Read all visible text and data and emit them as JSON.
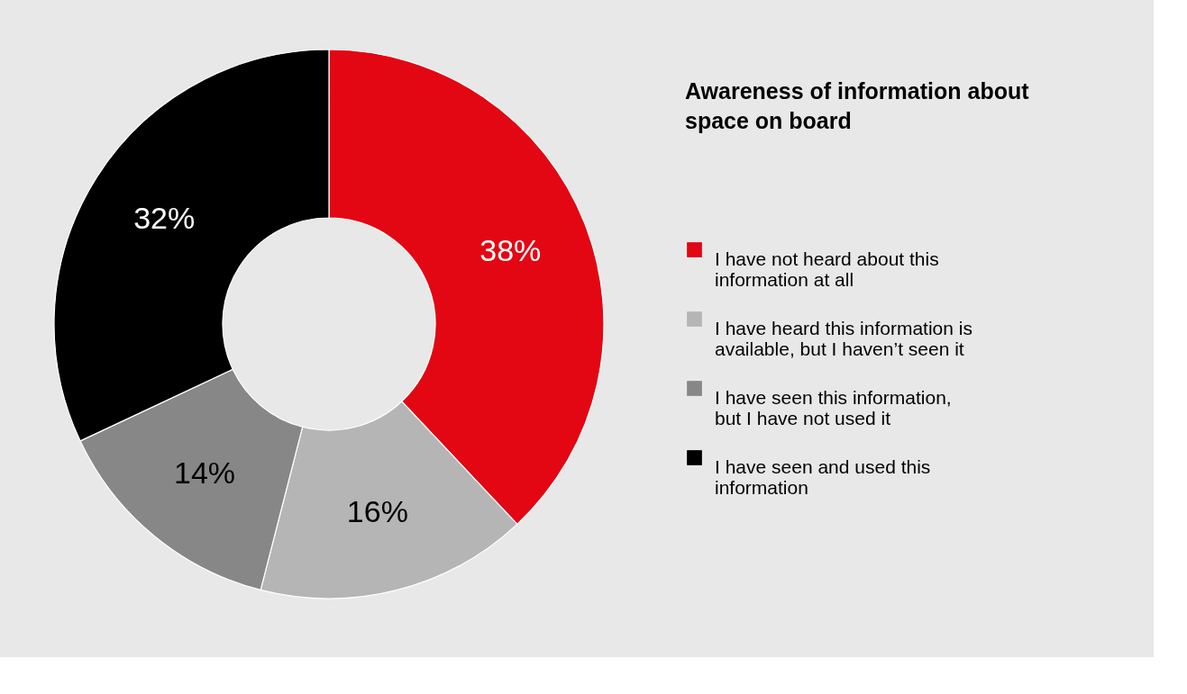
{
  "chart_data": {
    "type": "donut",
    "title": "Awareness of information about space on board",
    "categories": [
      "I have not heard about this information at all",
      "I have heard this information is available, but I haven’t seen it",
      "I have seen this information, but I have not used it",
      "I have seen and used this information"
    ],
    "values": [
      38,
      16,
      14,
      32
    ],
    "colors": [
      "#e30613",
      "#b5b5b5",
      "#878787",
      "#000000"
    ],
    "value_labels": [
      "38%",
      "16%",
      "14%",
      "32%"
    ],
    "legend": "right"
  }
}
